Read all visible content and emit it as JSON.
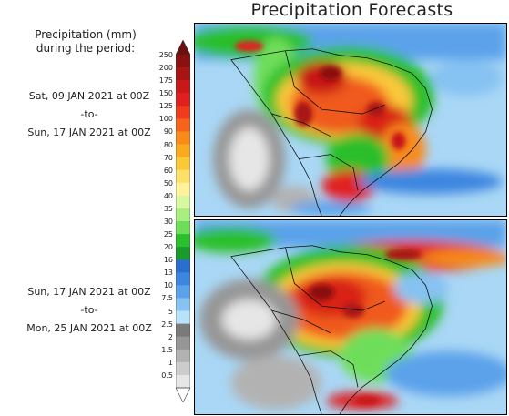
{
  "title": "Precipitation Forecasts",
  "legend": {
    "title_line1": "Precipitation (mm)",
    "title_line2": "during the period:",
    "unit": "mm",
    "levels": [
      "250",
      "200",
      "175",
      "150",
      "125",
      "100",
      "90",
      "80",
      "70",
      "60",
      "50",
      "40",
      "35",
      "30",
      "25",
      "20",
      "16",
      "13",
      "10",
      "7.5",
      "5",
      "2.5",
      "2",
      "1.5",
      "1",
      "0.5"
    ],
    "colors": [
      "#6e0f0f",
      "#8c1010",
      "#a81414",
      "#c81818",
      "#e02020",
      "#f03c1c",
      "#f5641a",
      "#f78a1a",
      "#f9aa1e",
      "#fbc83a",
      "#fde06a",
      "#fff29a",
      "#d8f7a0",
      "#a8ee80",
      "#6ede5a",
      "#2cbf2c",
      "#1a9a2a",
      "#2a6ed0",
      "#3c86e0",
      "#5ca2ea",
      "#86c2f2",
      "#b8e2f8",
      "#7a7a7a",
      "#969696",
      "#b2b2b2",
      "#cccccc",
      "#e6e6e6"
    ]
  },
  "periods": [
    {
      "start": "Sat, 09 JAN 2021 at 00Z",
      "sep": "-to-",
      "end": "Sun, 17 JAN 2021 at 00Z"
    },
    {
      "start": "Sun, 17 JAN 2021 at 00Z",
      "sep": "-to-",
      "end": "Mon, 25 JAN 2021 at 00Z"
    }
  ],
  "maps": [
    {
      "region": "South America",
      "period_index": 0
    },
    {
      "region": "South America",
      "period_index": 1
    }
  ]
}
